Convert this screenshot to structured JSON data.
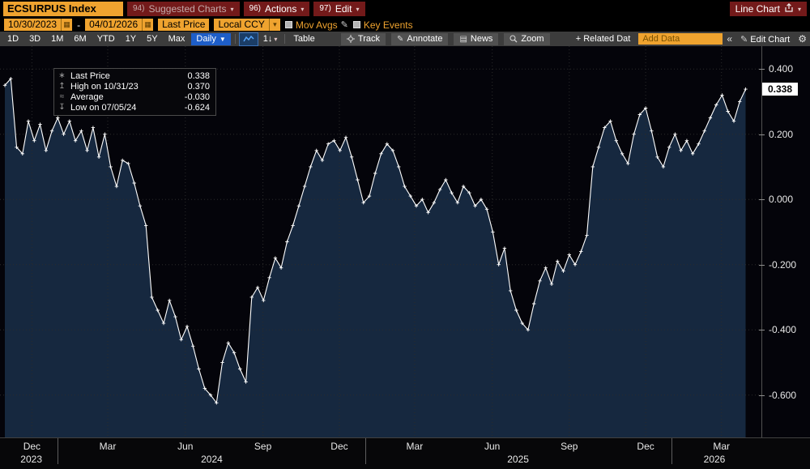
{
  "title_bar": {
    "security": "ECSURPUS Index",
    "menus": [
      {
        "key": "94)",
        "label": "Suggested Charts"
      },
      {
        "key": "96)",
        "label": "Actions"
      },
      {
        "key": "97)",
        "label": "Edit"
      }
    ],
    "chart_type_label": "Line Chart"
  },
  "toolbar2": {
    "date_from": "10/30/2023",
    "date_separator": "-",
    "date_to": "04/01/2026",
    "field": "Last Price",
    "currency": "Local CCY",
    "mov_avgs_label": "Mov Avgs",
    "key_events_label": "Key Events"
  },
  "toolbar3": {
    "periods": [
      "1D",
      "3D",
      "1M",
      "6M",
      "YTD",
      "1Y",
      "5Y",
      "Max"
    ],
    "frequency": "Daily",
    "axis_tool_label": "1↓",
    "table_label": "Table",
    "tools": [
      {
        "icon": "track-icon",
        "label": "Track"
      },
      {
        "icon": "annotate-icon",
        "label": "Annotate"
      },
      {
        "icon": "news-icon",
        "label": "News"
      },
      {
        "icon": "zoom-icon",
        "label": "Zoom"
      }
    ],
    "related_data_label": "+ Related Dat",
    "add_data_placeholder": "Add Data",
    "collapse_label": "«",
    "edit_chart_label": "Edit Chart"
  },
  "glyphs": {
    "caret_down": "▾",
    "caret_down_solid": "▼",
    "pencil": "✎",
    "gear": "⚙",
    "calendar": "▦",
    "news": "▤"
  },
  "legend": {
    "items": [
      {
        "icon": "last-price-marker-icon",
        "glyph": "∗",
        "label": "Last Price",
        "value": "0.338"
      },
      {
        "icon": "high-marker-icon",
        "glyph": "↥",
        "label": "High on 10/31/23",
        "value": "0.370"
      },
      {
        "icon": "average-marker-icon",
        "glyph": "≈",
        "label": "Average",
        "value": "-0.030"
      },
      {
        "icon": "low-marker-icon",
        "glyph": "↧",
        "label": "Low on 07/05/24",
        "value": "-0.624"
      }
    ]
  },
  "chart_data": {
    "type": "line",
    "title": "ECSURPUS Index — Last Price",
    "series_name": "Last Price",
    "x_unit": "weeks since 2023-10-30",
    "x_max": 128,
    "ylim": [
      -0.73,
      0.47
    ],
    "grid": true,
    "legend_position": "top-left",
    "y_ticks": [
      {
        "v": 0.4,
        "label": "0.400"
      },
      {
        "v": 0.2,
        "label": "0.200"
      },
      {
        "v": 0.0,
        "label": "0.000"
      },
      {
        "v": -0.2,
        "label": "-0.200"
      },
      {
        "v": -0.4,
        "label": "-0.400"
      },
      {
        "v": -0.6,
        "label": "-0.600"
      }
    ],
    "x_month_ticks": [
      {
        "wk": 4.6,
        "label": "Dec"
      },
      {
        "wk": 17.5,
        "label": "Mar"
      },
      {
        "wk": 30.7,
        "label": "Jun"
      },
      {
        "wk": 43.9,
        "label": "Sep"
      },
      {
        "wk": 56.9,
        "label": "Dec"
      },
      {
        "wk": 69.7,
        "label": "Mar"
      },
      {
        "wk": 82.9,
        "label": "Jun"
      },
      {
        "wk": 96.0,
        "label": "Sep"
      },
      {
        "wk": 109.0,
        "label": "Dec"
      },
      {
        "wk": 121.9,
        "label": "Mar"
      }
    ],
    "x_year_labels": [
      {
        "wk": 4.5,
        "label": "2023"
      },
      {
        "wk": 35.2,
        "label": "2024"
      },
      {
        "wk": 87.3,
        "label": "2025"
      },
      {
        "wk": 120.7,
        "label": "2026"
      }
    ],
    "year_boundaries_wk": [
      9.0,
      61.3,
      113.4
    ],
    "values": [
      0.35,
      0.37,
      0.16,
      0.14,
      0.24,
      0.18,
      0.23,
      0.15,
      0.21,
      0.25,
      0.2,
      0.24,
      0.18,
      0.21,
      0.15,
      0.22,
      0.13,
      0.2,
      0.1,
      0.04,
      0.12,
      0.11,
      0.05,
      -0.02,
      -0.08,
      -0.3,
      -0.34,
      -0.38,
      -0.31,
      -0.36,
      -0.43,
      -0.39,
      -0.45,
      -0.52,
      -0.58,
      -0.6,
      -0.624,
      -0.5,
      -0.44,
      -0.47,
      -0.52,
      -0.56,
      -0.3,
      -0.27,
      -0.31,
      -0.24,
      -0.18,
      -0.21,
      -0.13,
      -0.08,
      -0.02,
      0.04,
      0.1,
      0.15,
      0.12,
      0.17,
      0.18,
      0.15,
      0.19,
      0.13,
      0.06,
      -0.01,
      0.01,
      0.08,
      0.14,
      0.17,
      0.15,
      0.1,
      0.04,
      0.01,
      -0.02,
      0.0,
      -0.04,
      -0.01,
      0.03,
      0.06,
      0.02,
      -0.01,
      0.04,
      0.02,
      -0.02,
      0.0,
      -0.03,
      -0.1,
      -0.2,
      -0.15,
      -0.28,
      -0.34,
      -0.38,
      -0.4,
      -0.32,
      -0.25,
      -0.21,
      -0.26,
      -0.19,
      -0.22,
      -0.17,
      -0.2,
      -0.16,
      -0.11,
      0.1,
      0.16,
      0.22,
      0.24,
      0.18,
      0.14,
      0.11,
      0.2,
      0.26,
      0.28,
      0.21,
      0.13,
      0.1,
      0.16,
      0.2,
      0.15,
      0.18,
      0.14,
      0.17,
      0.21,
      0.25,
      0.29,
      0.32,
      0.27,
      0.24,
      0.3,
      0.338
    ],
    "stats": {
      "last": 0.338,
      "high": 0.37,
      "average": -0.03,
      "low": -0.624
    },
    "last_label": "0.338",
    "marker": "plus",
    "colors": {
      "line": "#FFFFFF",
      "fill": "#16283F",
      "grid": "#2B2B2B",
      "axis_text": "#E8E8E8"
    }
  }
}
